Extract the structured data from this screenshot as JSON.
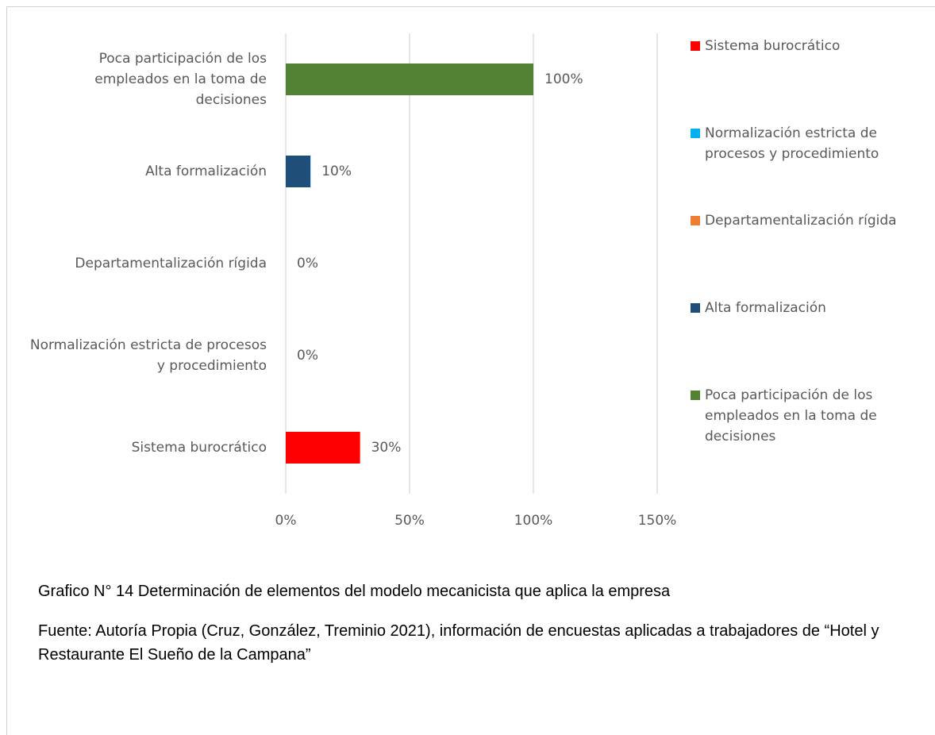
{
  "chart_data": {
    "type": "bar",
    "orientation": "horizontal",
    "categories": [
      "Sistema burocrático",
      "Normalización estricta de procesos y procedimiento",
      "Departamentalización rígida",
      "Alta formalización",
      "Poca participación de los empleados en la toma de decisiones"
    ],
    "values": [
      30,
      0,
      0,
      10,
      100
    ],
    "value_labels": [
      "30%",
      "0%",
      "0%",
      "10%",
      "100%"
    ],
    "colors": [
      "#ff0000",
      "#00b0f0",
      "#ed7d31",
      "#1f4e79",
      "#548235"
    ],
    "xlim": [
      0,
      150
    ],
    "xticks": [
      {
        "value": 0,
        "label": "0%"
      },
      {
        "value": 50,
        "label": "50%"
      },
      {
        "value": 100,
        "label": "100%"
      },
      {
        "value": 150,
        "label": "150%"
      }
    ],
    "grid": true,
    "legend": "right",
    "caption": "Grafico N° 14 Determinación de elementos del modelo mecanicista que aplica la empresa",
    "source": "Fuente: Autoría Propia (Cruz, González, Treminio 2021), información de encuestas aplicadas a trabajadores de “Hotel y Restaurante El Sueño de la Campana”"
  }
}
